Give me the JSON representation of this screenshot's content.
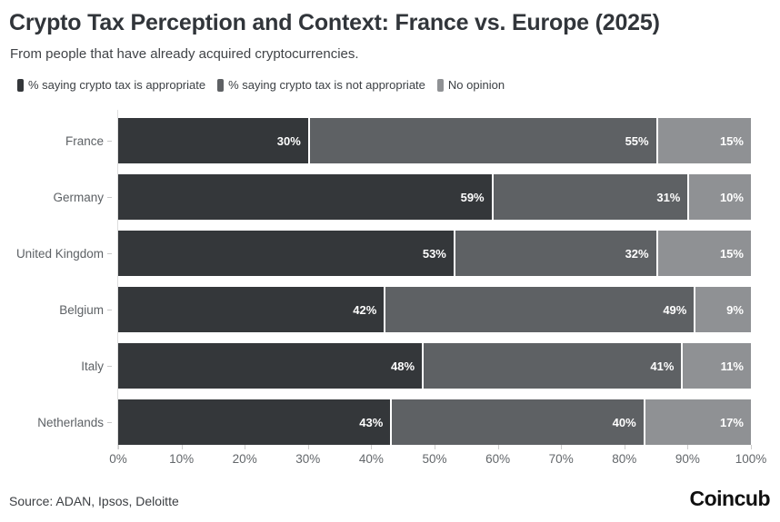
{
  "chart_data": {
    "type": "bar",
    "orientation": "horizontal",
    "stacked": true,
    "title": "Crypto Tax Perception and Context: France vs. Europe (2025)",
    "subtitle": "From people that have already acquired cryptocurrencies.",
    "categories": [
      "France",
      "Germany",
      "United Kingdom",
      "Belgium",
      "Italy",
      "Netherlands"
    ],
    "series": [
      {
        "name": "% saying crypto tax is appropriate",
        "color": "#34373a",
        "values": [
          30,
          59,
          53,
          42,
          48,
          43
        ],
        "labels": [
          "30%",
          "59%",
          "53%",
          "42%",
          "48%",
          "43%"
        ]
      },
      {
        "name": "% saying crypto tax is not appropriate",
        "color": "#5e6164",
        "values": [
          55,
          31,
          32,
          49,
          41,
          40
        ],
        "labels": [
          "55%",
          "31%",
          "32%",
          "49%",
          "41%",
          "40%"
        ]
      },
      {
        "name": "No opinion",
        "color": "#8f9194",
        "values": [
          15,
          10,
          15,
          9,
          11,
          17
        ],
        "labels": [
          "15%",
          "10%",
          "15%",
          "9%",
          "11%",
          "17%"
        ]
      }
    ],
    "xlim": [
      0,
      100
    ],
    "x_ticks": [
      "0%",
      "10%",
      "20%",
      "30%",
      "40%",
      "50%",
      "60%",
      "70%",
      "80%",
      "90%",
      "100%"
    ],
    "grid": false,
    "legend_position": "top",
    "value_suffix": "%",
    "axis_color": "#cccccc",
    "separator_color": "#ffffff"
  },
  "footer": {
    "source": "Source: ADAN, Ipsos, Deloitte",
    "brand": "Coincub"
  }
}
